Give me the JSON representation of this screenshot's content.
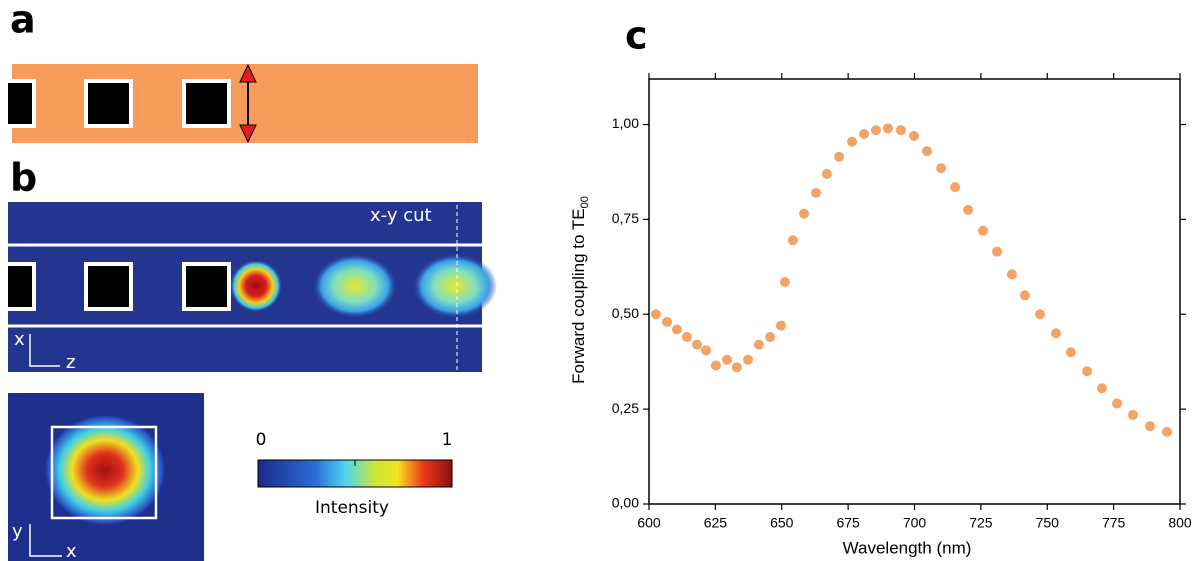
{
  "panel_a": {
    "label": "a"
  },
  "panel_b": {
    "label": "b",
    "cut_label": "x-y cut",
    "axis_x": "x",
    "axis_z": "z",
    "axis_y2": "y",
    "axis_x2": "x",
    "colorbar_min": "0",
    "colorbar_max": "1",
    "colorbar_label": "Intensity"
  },
  "chart_data": {
    "type": "scatter",
    "label": "c",
    "x_label": "Wavelength (nm)",
    "y_label": "Forward coupling to TE",
    "y_label_sub": "00",
    "color": "#f4a366",
    "x": [
      602.6,
      606.8,
      610.5,
      614.3,
      618.1,
      621.5,
      625.2,
      629.4,
      633.1,
      637.3,
      641.4,
      645.6,
      649.7,
      651.2,
      654.2,
      658.4,
      662.9,
      667.0,
      671.6,
      676.5,
      681.0,
      685.5,
      690.0,
      694.9,
      699.8,
      704.7,
      710.0,
      715.3,
      720.2,
      725.8,
      731.1,
      736.7,
      741.6,
      747.3,
      753.3,
      758.9,
      765.0,
      770.6,
      776.3,
      782.3,
      788.7,
      795.1
    ],
    "values": [
      0.5,
      0.48,
      0.46,
      0.44,
      0.42,
      0.405,
      0.365,
      0.38,
      0.36,
      0.38,
      0.42,
      0.44,
      0.47,
      0.585,
      0.695,
      0.765,
      0.82,
      0.87,
      0.915,
      0.955,
      0.975,
      0.985,
      0.99,
      0.985,
      0.97,
      0.93,
      0.885,
      0.835,
      0.775,
      0.72,
      0.665,
      0.605,
      0.55,
      0.5,
      0.45,
      0.4,
      0.35,
      0.305,
      0.265,
      0.235,
      0.205,
      0.19
    ],
    "xlim": [
      600,
      800
    ],
    "xticks": [
      600,
      625,
      650,
      675,
      700,
      725,
      750,
      775,
      800
    ],
    "ylim": [
      0,
      1.12
    ],
    "yticks": [
      {
        "value": 0,
        "label": "0,00"
      },
      {
        "value": 0.25,
        "label": "0,25"
      },
      {
        "value": 0.5,
        "label": "0,50"
      },
      {
        "value": 0.75,
        "label": "0,75"
      },
      {
        "value": 1,
        "label": "1,00"
      }
    ]
  }
}
